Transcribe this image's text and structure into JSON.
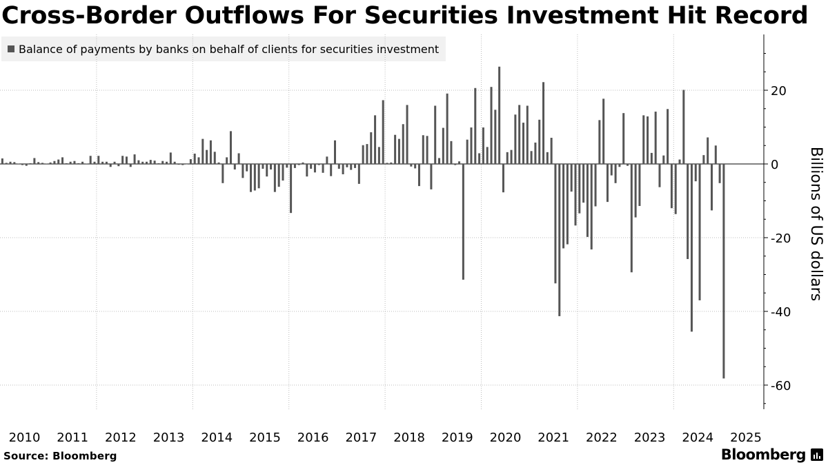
{
  "title": "Cross-Border Outflows For Securities Investment Hit Record",
  "legend": {
    "label": "Balance of payments by banks on behalf of clients for securities investment",
    "color": "#555555"
  },
  "footer": {
    "source": "Source: Bloomberg",
    "brand": "Bloomberg"
  },
  "colors": {
    "bar": "#555555",
    "grid": "#bbbbbb",
    "axis": "#000000"
  },
  "icons": {
    "brand": "bloomberg-terminal-icon"
  },
  "chart_data": {
    "type": "bar",
    "title": "Cross-Border Outflows For Securities Investment Hit Record",
    "ylabel": "Billions of US dollars",
    "xlabel": "",
    "ylim": [
      -66,
      35
    ],
    "yticks": [
      20,
      0,
      -20,
      -40,
      -60
    ],
    "ytick_labels": [
      "20",
      "0",
      "-20",
      "-40",
      "-60"
    ],
    "start": "2010-01",
    "year_labels": [
      "2010",
      "2011",
      "2012",
      "2013",
      "2014",
      "2015",
      "2016",
      "2017",
      "2018",
      "2019",
      "2020",
      "2021",
      "2022",
      "2023",
      "2024",
      "2025"
    ],
    "grid": true,
    "values": [
      1.5,
      0.3,
      0.6,
      0.5,
      0.1,
      -0.3,
      -0.5,
      0.2,
      1.6,
      0.5,
      0.3,
      0.1,
      0.4,
      0.8,
      1.2,
      1.8,
      0.2,
      0.6,
      0.8,
      0.2,
      0.6,
      0.1,
      2.2,
      0.6,
      2.2,
      0.6,
      0.6,
      -0.8,
      0.6,
      -0.6,
      2.2,
      2.0,
      -0.8,
      2.6,
      1.0,
      0.6,
      0.6,
      1.1,
      0.9,
      0.2,
      0.8,
      0.6,
      3.1,
      0.6,
      -0.2,
      -0.3,
      -0.1,
      1.3,
      2.8,
      1.8,
      6.8,
      3.8,
      6.4,
      3.3,
      0.4,
      -5.2,
      1.8,
      8.9,
      -1.5,
      2.9,
      -3.8,
      -2.0,
      -7.6,
      -7.2,
      -6.6,
      -1.3,
      -3.4,
      -1.5,
      -7.6,
      -6.2,
      -4.5,
      -1.0,
      -13.3,
      -1.1,
      -0.3,
      0.4,
      -3.4,
      -1.3,
      -2.3,
      -0.3,
      -2.4,
      2.0,
      -3.3,
      6.4,
      -1.3,
      -2.8,
      -0.9,
      -1.6,
      -1.1,
      -5.4,
      5.1,
      5.4,
      8.6,
      13.2,
      4.6,
      17.3,
      0.3,
      0.4,
      7.9,
      6.8,
      10.8,
      16.0,
      -0.7,
      -1.2,
      -6.0,
      7.8,
      7.6,
      -6.9,
      15.8,
      1.6,
      9.8,
      19.1,
      6.2,
      -0.3,
      0.7,
      -31.4,
      6.6,
      9.9,
      20.6,
      2.9,
      9.9,
      4.6,
      20.9,
      14.7,
      26.4,
      -7.7,
      3.2,
      3.8,
      13.4,
      16.0,
      11.2,
      15.8,
      3.5,
      5.8,
      12.0,
      22.2,
      3.2,
      7.1,
      -32.4,
      -41.3,
      -22.9,
      -21.8,
      -7.5,
      -16.7,
      -13.4,
      -10.5,
      -19.8,
      -23.2,
      -11.5,
      11.9,
      17.7,
      -10.3,
      -3.1,
      -5.2,
      -0.8,
      13.8,
      -0.5,
      -29.4,
      -14.5,
      -11.4,
      13.2,
      12.9,
      3.0,
      14.2,
      -6.3,
      2.3,
      14.9,
      -12.0,
      -13.6,
      1.2,
      20.1,
      -25.8,
      -45.5,
      -4.7,
      -37.0,
      2.4,
      7.2,
      -12.6,
      5.0,
      -5.2,
      -58.2
    ]
  }
}
